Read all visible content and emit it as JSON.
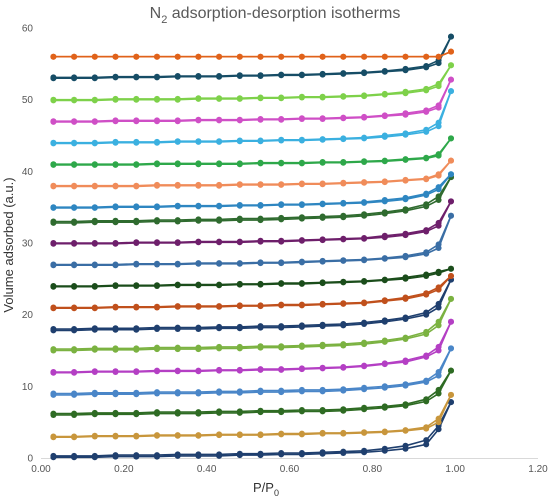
{
  "chart_data": {
    "type": "line",
    "title": {
      "text": "N",
      "sub": "2",
      "rest": " adsorption-desorption isotherms"
    },
    "xlabel": {
      "text": "P/P",
      "sub": "0"
    },
    "ylabel": "Volume  adsorbed (a.u.)",
    "xlim": [
      0,
      1.2
    ],
    "ylim": [
      0,
      60
    ],
    "x_ticks": [
      "0.00",
      "0.20",
      "0.40",
      "0.60",
      "0.80",
      "1.00",
      "1.20"
    ],
    "y_ticks": [
      "0",
      "10",
      "20",
      "30",
      "40",
      "50",
      "60"
    ],
    "grid": false,
    "legend": "none",
    "x": [
      0.03,
      0.08,
      0.13,
      0.18,
      0.23,
      0.28,
      0.33,
      0.38,
      0.43,
      0.48,
      0.53,
      0.58,
      0.63,
      0.68,
      0.73,
      0.78,
      0.83,
      0.88,
      0.93,
      0.96,
      0.99
    ],
    "series": [
      {
        "color": "#1f3f6e",
        "adsorption": [
          0.3,
          0.3,
          0.3,
          0.4,
          0.4,
          0.4,
          0.5,
          0.5,
          0.5,
          0.6,
          0.6,
          0.7,
          0.7,
          0.8,
          0.9,
          1.0,
          1.3,
          1.7,
          2.5,
          4.5,
          7.8
        ],
        "desorption": [
          0.1,
          0.1,
          0.1,
          0.2,
          0.2,
          0.2,
          0.3,
          0.3,
          0.3,
          0.4,
          0.4,
          0.5,
          0.5,
          0.6,
          0.7,
          0.8,
          1.0,
          1.3,
          1.9,
          4.0,
          7.8
        ]
      },
      {
        "color": "#c8963c",
        "adsorption": [
          3.0,
          3.0,
          3.1,
          3.1,
          3.1,
          3.2,
          3.2,
          3.2,
          3.3,
          3.3,
          3.3,
          3.4,
          3.4,
          3.5,
          3.5,
          3.6,
          3.7,
          3.9,
          4.3,
          5.5,
          8.8
        ],
        "desorption": [
          2.9,
          2.9,
          3.0,
          3.0,
          3.0,
          3.1,
          3.1,
          3.1,
          3.2,
          3.2,
          3.2,
          3.3,
          3.3,
          3.4,
          3.4,
          3.5,
          3.6,
          3.8,
          4.1,
          5.0,
          8.8
        ]
      },
      {
        "color": "#2e6b23",
        "adsorption": [
          6.2,
          6.2,
          6.3,
          6.3,
          6.3,
          6.4,
          6.4,
          6.4,
          6.5,
          6.5,
          6.6,
          6.6,
          6.7,
          6.7,
          6.8,
          7.0,
          7.2,
          7.5,
          8.2,
          9.5,
          12.2
        ],
        "desorption": [
          6.0,
          6.0,
          6.1,
          6.1,
          6.1,
          6.2,
          6.2,
          6.2,
          6.3,
          6.3,
          6.4,
          6.4,
          6.5,
          6.5,
          6.6,
          6.8,
          7.0,
          7.3,
          7.9,
          9.0,
          12.2
        ]
      },
      {
        "color": "#4a86c8",
        "adsorption": [
          9.0,
          9.0,
          9.1,
          9.1,
          9.1,
          9.2,
          9.2,
          9.2,
          9.3,
          9.3,
          9.4,
          9.4,
          9.5,
          9.5,
          9.6,
          9.8,
          10.0,
          10.3,
          10.8,
          12.0,
          15.3
        ],
        "desorption": [
          8.8,
          8.8,
          8.9,
          8.9,
          8.9,
          9.0,
          9.0,
          9.0,
          9.1,
          9.1,
          9.2,
          9.2,
          9.3,
          9.3,
          9.4,
          9.6,
          9.8,
          10.1,
          10.6,
          11.5,
          15.3
        ]
      },
      {
        "color": "#b43fc4",
        "adsorption": [
          12.0,
          12.0,
          12.1,
          12.1,
          12.1,
          12.2,
          12.2,
          12.2,
          12.3,
          12.3,
          12.4,
          12.4,
          12.5,
          12.6,
          12.7,
          12.9,
          13.2,
          13.6,
          14.3,
          15.5,
          19.0
        ],
        "desorption": [
          11.9,
          11.9,
          12.0,
          12.0,
          12.0,
          12.1,
          12.1,
          12.1,
          12.2,
          12.2,
          12.3,
          12.3,
          12.4,
          12.5,
          12.6,
          12.8,
          13.1,
          13.4,
          14.1,
          15.0,
          19.0
        ]
      },
      {
        "color": "#7bb241",
        "adsorption": [
          15.2,
          15.2,
          15.3,
          15.3,
          15.3,
          15.4,
          15.4,
          15.4,
          15.5,
          15.5,
          15.6,
          15.6,
          15.7,
          15.8,
          15.9,
          16.1,
          16.4,
          16.8,
          17.6,
          19.0,
          22.2
        ],
        "desorption": [
          15.0,
          15.0,
          15.1,
          15.1,
          15.1,
          15.2,
          15.2,
          15.2,
          15.3,
          15.3,
          15.4,
          15.4,
          15.5,
          15.6,
          15.7,
          15.9,
          16.2,
          16.6,
          17.3,
          18.5,
          22.2
        ]
      },
      {
        "color": "#1f3f6e",
        "adsorption": [
          18.0,
          18.0,
          18.1,
          18.1,
          18.1,
          18.2,
          18.2,
          18.2,
          18.3,
          18.3,
          18.4,
          18.4,
          18.5,
          18.6,
          18.7,
          18.9,
          19.2,
          19.6,
          20.3,
          21.5,
          24.9
        ],
        "desorption": [
          17.8,
          17.8,
          17.9,
          17.9,
          17.9,
          18.0,
          18.0,
          18.0,
          18.1,
          18.1,
          18.2,
          18.2,
          18.3,
          18.4,
          18.5,
          18.7,
          19.0,
          19.4,
          20.0,
          21.0,
          24.9
        ]
      },
      {
        "color": "#c0501c",
        "adsorption": [
          21.0,
          21.0,
          21.0,
          21.1,
          21.1,
          21.1,
          21.2,
          21.2,
          21.2,
          21.3,
          21.3,
          21.4,
          21.4,
          21.5,
          21.6,
          21.7,
          22.0,
          22.4,
          23.0,
          23.8,
          25.4
        ],
        "desorption": [
          20.9,
          20.9,
          20.9,
          21.0,
          21.0,
          21.0,
          21.1,
          21.1,
          21.1,
          21.2,
          21.2,
          21.3,
          21.3,
          21.4,
          21.5,
          21.6,
          21.9,
          22.2,
          22.8,
          23.5,
          25.4
        ]
      },
      {
        "color": "#1b4d1b",
        "adsorption": [
          24.0,
          24.0,
          24.0,
          24.1,
          24.1,
          24.1,
          24.2,
          24.2,
          24.2,
          24.3,
          24.3,
          24.4,
          24.4,
          24.5,
          24.6,
          24.7,
          24.9,
          25.2,
          25.6,
          26.0,
          26.4
        ],
        "desorption": [
          23.9,
          23.9,
          23.9,
          24.0,
          24.0,
          24.0,
          24.1,
          24.1,
          24.1,
          24.2,
          24.2,
          24.3,
          24.3,
          24.4,
          24.5,
          24.6,
          24.8,
          25.0,
          25.4,
          25.8,
          26.4
        ]
      },
      {
        "color": "#3a6ea5",
        "adsorption": [
          27.0,
          27.0,
          27.0,
          27.0,
          27.1,
          27.1,
          27.1,
          27.2,
          27.2,
          27.2,
          27.3,
          27.3,
          27.4,
          27.5,
          27.6,
          27.7,
          27.9,
          28.2,
          28.7,
          29.8,
          33.8
        ],
        "desorption": [
          26.9,
          26.9,
          26.9,
          26.9,
          27.0,
          27.0,
          27.0,
          27.1,
          27.1,
          27.1,
          27.2,
          27.2,
          27.3,
          27.4,
          27.5,
          27.6,
          27.8,
          28.0,
          28.5,
          29.3,
          33.8
        ]
      },
      {
        "color": "#6e1f6b",
        "adsorption": [
          30.0,
          30.0,
          30.0,
          30.0,
          30.1,
          30.1,
          30.1,
          30.2,
          30.2,
          30.2,
          30.3,
          30.3,
          30.4,
          30.5,
          30.6,
          30.7,
          31.0,
          31.3,
          31.8,
          32.8,
          35.8
        ],
        "desorption": [
          29.9,
          29.9,
          29.9,
          29.9,
          30.0,
          30.0,
          30.0,
          30.1,
          30.1,
          30.1,
          30.2,
          30.2,
          30.3,
          30.4,
          30.5,
          30.6,
          30.8,
          31.1,
          31.6,
          32.4,
          35.8
        ]
      },
      {
        "color": "#2f6b2f",
        "adsorption": [
          33.0,
          33.0,
          33.1,
          33.1,
          33.1,
          33.2,
          33.2,
          33.3,
          33.3,
          33.4,
          33.4,
          33.5,
          33.6,
          33.7,
          33.8,
          34.0,
          34.3,
          34.7,
          35.4,
          36.5,
          39.2
        ],
        "desorption": [
          32.8,
          32.8,
          32.9,
          32.9,
          32.9,
          33.0,
          33.0,
          33.1,
          33.1,
          33.2,
          33.2,
          33.3,
          33.4,
          33.5,
          33.6,
          33.8,
          34.1,
          34.5,
          35.1,
          36.0,
          39.2
        ]
      },
      {
        "color": "#2e86c1",
        "adsorption": [
          35.0,
          35.0,
          35.0,
          35.1,
          35.1,
          35.1,
          35.2,
          35.2,
          35.2,
          35.3,
          35.3,
          35.4,
          35.4,
          35.5,
          35.6,
          35.7,
          36.0,
          36.3,
          36.9,
          37.8,
          39.6
        ],
        "desorption": [
          34.9,
          34.9,
          34.9,
          35.0,
          35.0,
          35.0,
          35.1,
          35.1,
          35.1,
          35.2,
          35.2,
          35.3,
          35.3,
          35.4,
          35.5,
          35.6,
          35.8,
          36.1,
          36.7,
          37.5,
          39.6
        ]
      },
      {
        "color": "#f08c5a",
        "adsorption": [
          38.0,
          38.0,
          38.0,
          38.0,
          38.0,
          38.1,
          38.1,
          38.1,
          38.1,
          38.2,
          38.2,
          38.2,
          38.3,
          38.3,
          38.4,
          38.5,
          38.6,
          38.8,
          39.0,
          39.6,
          41.5
        ],
        "desorption": [
          37.9,
          37.9,
          37.9,
          37.9,
          37.9,
          38.0,
          38.0,
          38.0,
          38.0,
          38.1,
          38.1,
          38.1,
          38.2,
          38.2,
          38.3,
          38.4,
          38.5,
          38.7,
          38.9,
          39.4,
          41.5
        ]
      },
      {
        "color": "#2ea84a",
        "adsorption": [
          41.0,
          41.0,
          41.0,
          41.0,
          41.0,
          41.1,
          41.1,
          41.1,
          41.1,
          41.1,
          41.2,
          41.2,
          41.2,
          41.3,
          41.3,
          41.4,
          41.5,
          41.7,
          41.9,
          42.4,
          44.6
        ],
        "desorption": [
          40.9,
          40.9,
          40.9,
          40.9,
          40.9,
          41.0,
          41.0,
          41.0,
          41.0,
          41.0,
          41.1,
          41.1,
          41.1,
          41.2,
          41.2,
          41.3,
          41.4,
          41.6,
          41.8,
          42.2,
          44.6
        ]
      },
      {
        "color": "#3bb0e0",
        "adsorption": [
          44.0,
          44.0,
          44.0,
          44.1,
          44.1,
          44.1,
          44.2,
          44.2,
          44.2,
          44.3,
          44.3,
          44.4,
          44.4,
          44.5,
          44.6,
          44.7,
          45.0,
          45.3,
          45.8,
          46.8,
          51.2
        ],
        "desorption": [
          43.9,
          43.9,
          43.9,
          44.0,
          44.0,
          44.0,
          44.1,
          44.1,
          44.1,
          44.2,
          44.2,
          44.3,
          44.3,
          44.4,
          44.5,
          44.6,
          44.8,
          45.1,
          45.5,
          46.3,
          51.2
        ]
      },
      {
        "color": "#cf4fc6",
        "adsorption": [
          47.0,
          47.0,
          47.0,
          47.1,
          47.1,
          47.1,
          47.1,
          47.2,
          47.2,
          47.2,
          47.3,
          47.3,
          47.4,
          47.4,
          47.5,
          47.6,
          47.8,
          48.1,
          48.5,
          49.2,
          52.8
        ],
        "desorption": [
          46.9,
          46.9,
          46.9,
          47.0,
          47.0,
          47.0,
          47.0,
          47.1,
          47.1,
          47.1,
          47.2,
          47.2,
          47.3,
          47.3,
          47.4,
          47.5,
          47.7,
          47.9,
          48.3,
          48.9,
          52.8
        ]
      },
      {
        "color": "#7ed14a",
        "adsorption": [
          50.0,
          50.0,
          50.0,
          50.1,
          50.1,
          50.1,
          50.1,
          50.2,
          50.2,
          50.2,
          50.3,
          50.3,
          50.4,
          50.4,
          50.5,
          50.6,
          50.8,
          51.1,
          51.5,
          52.2,
          54.8
        ],
        "desorption": [
          49.9,
          49.9,
          49.9,
          50.0,
          50.0,
          50.0,
          50.0,
          50.1,
          50.1,
          50.1,
          50.2,
          50.2,
          50.3,
          50.3,
          50.4,
          50.5,
          50.7,
          50.9,
          51.3,
          51.9,
          54.8
        ]
      },
      {
        "color": "#164d66",
        "adsorption": [
          53.1,
          53.1,
          53.1,
          53.2,
          53.2,
          53.2,
          53.3,
          53.3,
          53.3,
          53.4,
          53.4,
          53.5,
          53.5,
          53.6,
          53.7,
          53.8,
          54.0,
          54.3,
          54.7,
          55.5,
          58.8
        ],
        "desorption": [
          53.0,
          53.0,
          53.0,
          53.1,
          53.1,
          53.1,
          53.2,
          53.2,
          53.2,
          53.3,
          53.3,
          53.4,
          53.4,
          53.5,
          53.6,
          53.7,
          53.9,
          54.1,
          54.5,
          55.1,
          58.8
        ]
      },
      {
        "color": "#e0621a",
        "adsorption": [
          56.0,
          56.0,
          56.0,
          56.0,
          56.0,
          56.0,
          56.0,
          56.0,
          56.0,
          56.0,
          56.0,
          56.0,
          56.0,
          56.0,
          56.0,
          56.0,
          56.0,
          56.0,
          56.0,
          56.0,
          56.7
        ],
        "desorption": [
          56.0,
          56.0,
          56.0,
          56.0,
          56.0,
          56.0,
          56.0,
          56.0,
          56.0,
          56.0,
          56.0,
          56.0,
          56.0,
          56.0,
          56.0,
          56.0,
          56.0,
          56.0,
          56.0,
          56.0,
          56.7
        ]
      }
    ]
  }
}
